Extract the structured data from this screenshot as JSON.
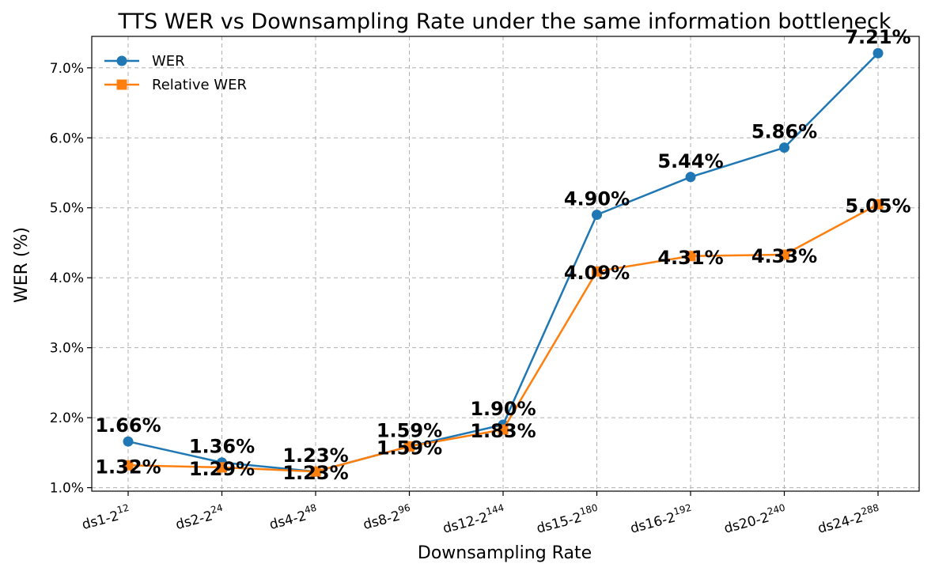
{
  "chart_data": {
    "type": "line",
    "title": "TTS WER vs Downsampling Rate under the same information bottleneck",
    "xlabel": "Downsampling Rate",
    "ylabel": "WER (%)",
    "categories": [
      {
        "base": "ds1-2",
        "exp": "12"
      },
      {
        "base": "ds2-2",
        "exp": "24"
      },
      {
        "base": "ds4-2",
        "exp": "48"
      },
      {
        "base": "ds8-2",
        "exp": "96"
      },
      {
        "base": "ds12-2",
        "exp": "144"
      },
      {
        "base": "ds15-2",
        "exp": "180"
      },
      {
        "base": "ds16-2",
        "exp": "192"
      },
      {
        "base": "ds20-2",
        "exp": "240"
      },
      {
        "base": "ds24-2",
        "exp": "288"
      }
    ],
    "ylim": [
      0.95,
      7.45
    ],
    "yticks": [
      1.0,
      2.0,
      3.0,
      4.0,
      5.0,
      6.0,
      7.0
    ],
    "ytick_labels": [
      "1.0%",
      "2.0%",
      "3.0%",
      "4.0%",
      "5.0%",
      "6.0%",
      "7.0%"
    ],
    "grid": true,
    "legend_position": "top-left",
    "series": [
      {
        "name": "WER",
        "color": "#1f77b4",
        "marker": "circle",
        "values": [
          1.66,
          1.36,
          1.23,
          1.59,
          1.9,
          4.9,
          5.44,
          5.86,
          7.21
        ],
        "labels": [
          "1.66%",
          "1.36%",
          "1.23%",
          "1.59%",
          "1.90%",
          "4.90%",
          "5.44%",
          "5.86%",
          "7.21%"
        ]
      },
      {
        "name": "Relative WER",
        "color": "#ff7f0e",
        "marker": "square",
        "values": [
          1.32,
          1.29,
          1.23,
          1.59,
          1.83,
          4.09,
          4.31,
          4.33,
          5.05
        ],
        "labels": [
          "1.32%",
          "1.29%",
          "1.23%",
          "1.59%",
          "1.83%",
          "4.09%",
          "4.31%",
          "4.33%",
          "5.05%"
        ]
      }
    ]
  }
}
